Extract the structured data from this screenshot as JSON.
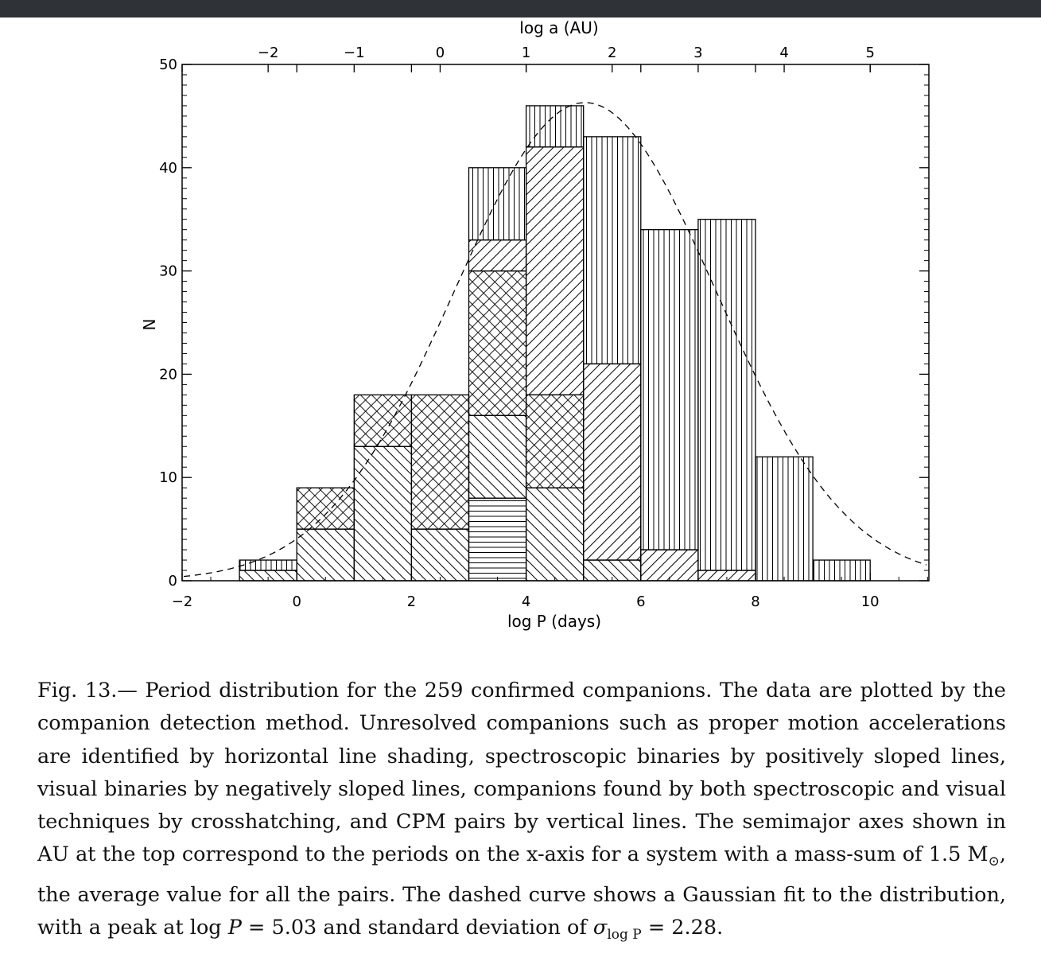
{
  "window": {
    "topbar_color": "#2f3337"
  },
  "chart_data": {
    "type": "bar",
    "subtype": "stacked histogram",
    "xlabel": "log P (days)",
    "ylabel": "N",
    "top_axis_label": "log a (AU)",
    "xlim": [
      -2,
      11
    ],
    "ylim": [
      0,
      50
    ],
    "x_ticks": [
      "−2",
      "0",
      "2",
      "4",
      "6",
      "8",
      "10"
    ],
    "x_tick_values": [
      -2,
      0,
      2,
      4,
      6,
      8,
      10
    ],
    "y_ticks": [
      "0",
      "10",
      "20",
      "30",
      "40",
      "50"
    ],
    "y_tick_values": [
      0,
      10,
      20,
      30,
      40,
      50
    ],
    "top_ticks": [
      "−2",
      "−1",
      "0",
      "1",
      "2",
      "3",
      "4",
      "5"
    ],
    "top_tick_positions_logP": [
      -0.5,
      1.0,
      2.5,
      4.0,
      5.5,
      7.0,
      8.5,
      10.0
    ],
    "grid": false,
    "bin_edges": [
      -1,
      0,
      1,
      2,
      3,
      4,
      5,
      6,
      7,
      8,
      9,
      10
    ],
    "series": [
      {
        "name": "Unresolved (proper motion accelerations)",
        "pattern": "horizontal",
        "values": [
          0,
          0,
          0,
          0,
          8,
          0,
          0,
          0,
          0,
          0,
          0
        ]
      },
      {
        "name": "Spectroscopic binaries",
        "pattern": "positive-slope",
        "values": [
          1,
          5,
          13,
          5,
          8,
          9,
          2,
          0,
          0,
          0,
          0
        ]
      },
      {
        "name": "Spectroscopic + visual",
        "pattern": "crosshatch",
        "values": [
          0,
          4,
          5,
          13,
          14,
          9,
          0,
          0,
          0,
          0,
          0
        ]
      },
      {
        "name": "Visual binaries",
        "pattern": "negative-slope",
        "values": [
          0,
          0,
          0,
          0,
          3,
          24,
          19,
          3,
          1,
          0,
          0
        ]
      },
      {
        "name": "CPM pairs",
        "pattern": "vertical",
        "values": [
          1,
          0,
          0,
          0,
          7,
          4,
          22,
          31,
          34,
          12,
          2
        ]
      }
    ],
    "totals": [
      2,
      9,
      18,
      18,
      40,
      46,
      43,
      34,
      35,
      12,
      2
    ],
    "fit": {
      "type": "gaussian",
      "style": "dashed",
      "peak_logP": 5.03,
      "sigma": 2.28,
      "amplitude": 46.3
    }
  },
  "caption": {
    "prefix": "Fig. 13.— Period distribution for the 259 confirmed companions. The data are plotted by the companion detection method. Unresolved companions such as proper motion accelerations are identified by horizontal line shading, spectroscopic binaries by positively sloped lines, visual binaries by negatively sloped lines, companions found by both spectroscopic and visual techniques by crosshatching, and CPM pairs by vertical lines. The semimajor axes shown in AU at the top correspond to the periods on the x-axis for a system with a mass-sum of 1.5 M",
    "sun_symbol": "⊙",
    "middle": ", the average value for all the pairs. The dashed curve shows a Gaussian fit to the distribution, with a peak at log ",
    "p1": "P",
    "eq1": " = 5.03 and standard deviation of ",
    "sigma": "σ",
    "sub": "log P",
    "eq2": " = 2.28."
  }
}
